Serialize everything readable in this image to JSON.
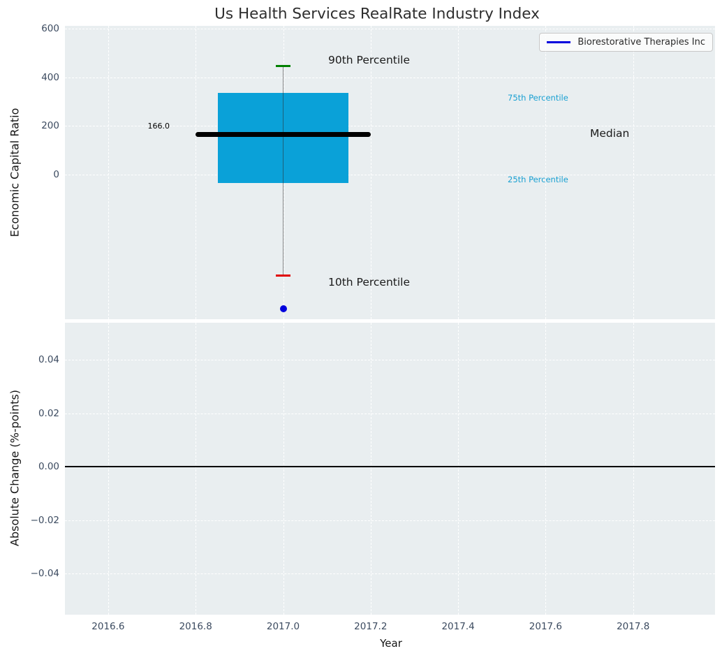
{
  "figure": {
    "background": "#ffffff",
    "plot_background": "#e9eef0",
    "grid_color": "#ffffff",
    "tick_label_color": "#3b4a5f",
    "title_color": "#2e2e2e",
    "axis_label_color": "#151515"
  },
  "chart_data": [
    {
      "type": "box",
      "title": "Us Health Services RealRate Industry Index",
      "ylabel": "Economic Capital Ratio",
      "ylim": [
        -600,
        612
      ],
      "grid": true,
      "yticks": [
        {
          "v": 600,
          "label": "600"
        },
        {
          "v": 400,
          "label": "400"
        },
        {
          "v": 200,
          "label": "200"
        },
        {
          "v": 0,
          "label": "0"
        }
      ],
      "x_center": 2017.0,
      "box_x_span": [
        2016.85,
        2017.15
      ],
      "median_x_span": [
        2016.8,
        2017.2
      ],
      "percentiles": {
        "p90": 445,
        "p75": 335,
        "median": 166.0,
        "p25": -35,
        "p10": -415
      },
      "annotations": {
        "p90": "90th Percentile",
        "p75": "75th Percentile",
        "median": "Median",
        "p25": "25th Percentile",
        "p10": "10th Percentile",
        "median_value": "166.0"
      },
      "colors": {
        "box": "#0aa1d8",
        "median_line": "#000000",
        "whisker": "rgba(45,45,45,0.55)",
        "cap_90th": "#008000",
        "cap_10th": "#e00000",
        "percentile_text": "#19a0d2"
      },
      "series": [
        {
          "name": "Biorestorative Therapies Inc",
          "marker": "dot",
          "color": "#0000dd",
          "x": [
            2017.0
          ],
          "y": [
            -550
          ]
        }
      ],
      "legend": {
        "entries": [
          "Biorestorative Therapies Inc"
        ],
        "position": "upper right"
      }
    },
    {
      "type": "line",
      "xlabel": "Year",
      "ylabel": "Absolute Change (%-points)",
      "xlim": [
        2016.5,
        2018.0
      ],
      "ylim": [
        -0.055,
        0.055
      ],
      "zero_line": 0.0,
      "grid": true,
      "yticks": [
        {
          "v": 0.04,
          "label": "0.04"
        },
        {
          "v": 0.02,
          "label": "0.02"
        },
        {
          "v": 0,
          "label": "0.00"
        },
        {
          "v": -0.02,
          "label": "−0.02"
        },
        {
          "v": -0.04,
          "label": "−0.04"
        }
      ],
      "xticks": [
        {
          "v": 2016.6,
          "label": "2016.6"
        },
        {
          "v": 2016.8,
          "label": "2016.8"
        },
        {
          "v": 2017.0,
          "label": "2017.0"
        },
        {
          "v": 2017.2,
          "label": "2017.2"
        },
        {
          "v": 2017.4,
          "label": "2017.4"
        },
        {
          "v": 2017.6,
          "label": "2017.6"
        },
        {
          "v": 2017.8,
          "label": "2017.8"
        }
      ],
      "series": []
    }
  ]
}
